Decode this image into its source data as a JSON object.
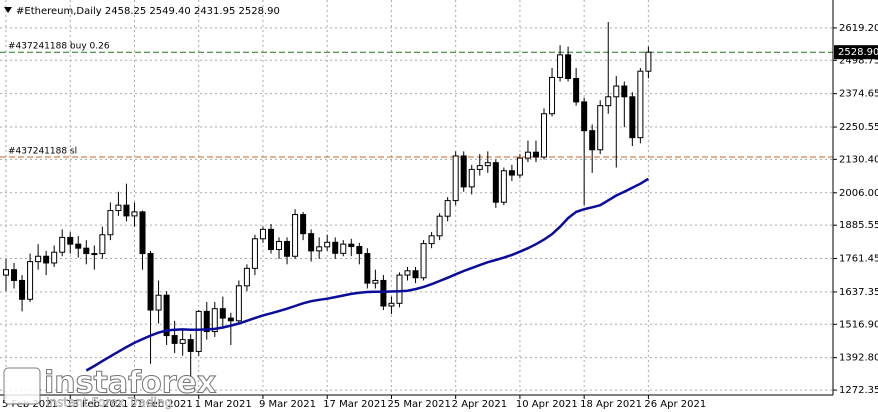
{
  "chart_data": {
    "type": "candlestick",
    "title": "#Ethereum,Daily  2458.25 2549.40 2431.95 2528.90",
    "categories": [
      "5 Feb 2021",
      null,
      null,
      null,
      null,
      null,
      null,
      null,
      "13 Feb 2021",
      null,
      null,
      null,
      null,
      null,
      null,
      null,
      "21 Feb 2021",
      null,
      null,
      null,
      null,
      null,
      null,
      null,
      "1 Mar 2021",
      null,
      null,
      null,
      null,
      null,
      null,
      null,
      "9 Mar 2021",
      null,
      null,
      null,
      null,
      null,
      null,
      null,
      "17 Mar 2021",
      null,
      null,
      null,
      null,
      null,
      null,
      null,
      "25 Mar 2021",
      null,
      null,
      null,
      null,
      null,
      null,
      null,
      "2 Apr 2021",
      null,
      null,
      null,
      null,
      null,
      null,
      null,
      "10 Apr 2021",
      null,
      null,
      null,
      null,
      null,
      null,
      null,
      "18 Apr 2021",
      null,
      null,
      null,
      null,
      null,
      null,
      null,
      "26 Apr 2021"
    ],
    "open": [
      1700,
      1720,
      1680,
      1610,
      1750,
      1770,
      1745,
      1785,
      1840,
      1815,
      1800,
      1780,
      1780,
      1850,
      1940,
      1960,
      1920,
      1935,
      1780,
      1570,
      1625,
      1475,
      1446,
      1460,
      1416,
      1565,
      1490,
      1575,
      1540,
      1530,
      1660,
      1725,
      1835,
      1870,
      1795,
      1825,
      1770,
      1925,
      1854,
      1790,
      1805,
      1822,
      1781,
      1815,
      1806,
      1780,
      1670,
      1680,
      1585,
      1595,
      1700,
      1716,
      1690,
      1817,
      1846,
      1919,
      1977,
      2143,
      2028,
      2093,
      2107,
      2118,
      1971,
      2088,
      2072,
      2135,
      2157,
      2139,
      2300,
      2435,
      2519,
      2431,
      2344,
      2237,
      2166,
      2330,
      2363,
      2403,
      2363,
      2211,
      2458.25
    ],
    "high": [
      1760,
      1745,
      1700,
      1780,
      1815,
      1790,
      1810,
      1870,
      1860,
      1845,
      1830,
      1810,
      1880,
      1970,
      2010,
      2040,
      1970,
      1940,
      1790,
      1680,
      1640,
      1530,
      1500,
      1480,
      1570,
      1600,
      1600,
      1620,
      1560,
      1680,
      1740,
      1850,
      1880,
      1890,
      1840,
      1840,
      1945,
      1935,
      1870,
      1840,
      1850,
      1840,
      1830,
      1835,
      1820,
      1800,
      1720,
      1700,
      1620,
      1710,
      1730,
      1730,
      1830,
      1860,
      1930,
      1990,
      2160,
      2160,
      2110,
      2150,
      2160,
      2130,
      2100,
      2110,
      2150,
      2200,
      2200,
      2320,
      2470,
      2555,
      2550,
      2470,
      2360,
      2260,
      2350,
      2641,
      2440,
      2420,
      2380,
      2470,
      2549.4
    ],
    "low": [
      1640,
      1650,
      1565,
      1600,
      1720,
      1700,
      1730,
      1770,
      1780,
      1765,
      1740,
      1720,
      1760,
      1830,
      1920,
      1900,
      1880,
      1720,
      1370,
      1520,
      1440,
      1410,
      1400,
      1300,
      1400,
      1460,
      1470,
      1500,
      1440,
      1520,
      1640,
      1700,
      1820,
      1780,
      1760,
      1740,
      1760,
      1830,
      1750,
      1760,
      1790,
      1760,
      1770,
      1770,
      1740,
      1650,
      1650,
      1570,
      1555,
      1580,
      1680,
      1670,
      1680,
      1800,
      1830,
      1900,
      1960,
      2010,
      2000,
      2070,
      2080,
      1950,
      1960,
      2050,
      2060,
      2120,
      2120,
      2130,
      2290,
      2420,
      2420,
      2330,
      1960,
      2080,
      2150,
      2300,
      2100,
      2250,
      2180,
      2190,
      2431.95
    ],
    "close": [
      1720,
      1680,
      1610,
      1750,
      1770,
      1745,
      1785,
      1840,
      1815,
      1800,
      1780,
      1780,
      1850,
      1940,
      1960,
      1920,
      1935,
      1780,
      1570,
      1625,
      1475,
      1446,
      1460,
      1416,
      1565,
      1490,
      1575,
      1540,
      1530,
      1660,
      1725,
      1835,
      1870,
      1795,
      1825,
      1770,
      1925,
      1854,
      1790,
      1805,
      1822,
      1781,
      1815,
      1806,
      1780,
      1670,
      1680,
      1585,
      1595,
      1700,
      1716,
      1690,
      1817,
      1846,
      1919,
      1977,
      2143,
      2028,
      2093,
      2107,
      2118,
      1971,
      2088,
      2072,
      2135,
      2157,
      2139,
      2300,
      2435,
      2519,
      2431,
      2344,
      2237,
      2166,
      2330,
      2363,
      2403,
      2363,
      2211,
      2458.25,
      2528.9
    ],
    "ma": {
      "color": "#0b0b9c",
      "values": [
        null,
        null,
        null,
        null,
        null,
        null,
        null,
        null,
        null,
        null,
        1345,
        1362,
        1380,
        1398,
        1415,
        1432,
        1448,
        1462,
        1475,
        1486,
        1494,
        1497,
        1498,
        1497,
        1497,
        1498,
        1500,
        1505,
        1512,
        1520,
        1530,
        1540,
        1550,
        1558,
        1566,
        1575,
        1585,
        1595,
        1603,
        1608,
        1612,
        1618,
        1624,
        1630,
        1634,
        1637,
        1638,
        1638,
        1639,
        1640,
        1642,
        1648,
        1656,
        1666,
        1678,
        1690,
        1703,
        1715,
        1726,
        1737,
        1748,
        1756,
        1765,
        1775,
        1787,
        1800,
        1815,
        1832,
        1852,
        1880,
        1912,
        1935,
        1945,
        1952,
        1960,
        1978,
        1996,
        2010,
        2025,
        2040,
        2058
      ]
    },
    "orders": [
      {
        "label": "#437241188 buy 0.26",
        "price": {
          "value": 2528.9,
          "label": "2528.90"
        },
        "color": "#1e7a1e"
      },
      {
        "label": "#437241188 sl",
        "price": 2139,
        "color": "#c8641e"
      }
    ],
    "ylim": [
      1254,
      2723
    ],
    "yticks": [
      {
        "value": 2619.2,
        "label": "2619.20"
      },
      {
        "value": 2498.75,
        "label": "2498.75"
      },
      {
        "value": 2374.65,
        "label": "2374.65"
      },
      {
        "value": 2250.55,
        "label": "2250.55"
      },
      {
        "value": 2130.4,
        "label": "2130.40"
      },
      {
        "value": 2006,
        "label": "2006.00"
      },
      {
        "value": 1885.55,
        "label": "1885.55"
      },
      {
        "value": 1761.45,
        "label": "1761.45"
      },
      {
        "value": 1637.35,
        "label": "1637.35"
      },
      {
        "value": 1516.9,
        "label": "1516.90"
      },
      {
        "value": 1392.8,
        "label": "1392.80"
      },
      {
        "value": 1272.35,
        "label": "1272.35"
      }
    ],
    "grid": true,
    "watermark": {
      "brand": "instaforex",
      "slogan": "Instant Forex Trading"
    }
  }
}
